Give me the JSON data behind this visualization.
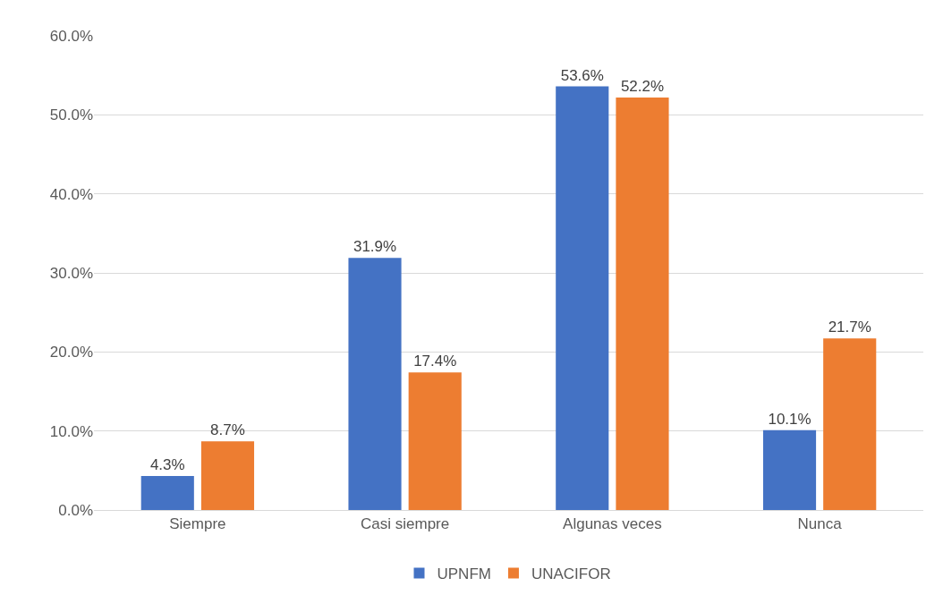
{
  "chart_data": {
    "type": "bar",
    "categories": [
      "Siempre",
      "Casi siempre",
      "Algunas veces",
      "Nunca"
    ],
    "series": [
      {
        "name": "UPNFM",
        "color": "#4472c4",
        "values": [
          4.3,
          31.9,
          53.6,
          10.1
        ],
        "value_labels": [
          "4.3%",
          "31.9%",
          "53.6%",
          "10.1%"
        ]
      },
      {
        "name": "UNACIFOR",
        "color": "#ed7d31",
        "values": [
          8.7,
          17.4,
          52.2,
          21.7
        ],
        "value_labels": [
          "8.7%",
          "17.4%",
          "52.2%",
          "21.7%"
        ]
      }
    ],
    "ylim": [
      0,
      60
    ],
    "yticks": [
      {
        "value": 0,
        "label": "0.0%"
      },
      {
        "value": 10,
        "label": "10.0%"
      },
      {
        "value": 20,
        "label": "20.0%"
      },
      {
        "value": 30,
        "label": "30.0%"
      },
      {
        "value": 40,
        "label": "40.0%"
      },
      {
        "value": 50,
        "label": "50.0%"
      },
      {
        "value": 60,
        "label": "60.0%"
      }
    ],
    "grid": "y",
    "legend": "bottom"
  }
}
